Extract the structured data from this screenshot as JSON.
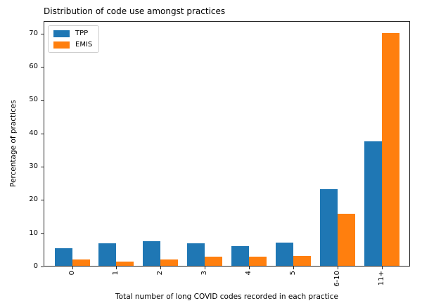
{
  "chart_data": {
    "type": "bar",
    "title": "Distribution of code use amongst practices",
    "xlabel": "Total number of long COVID codes recorded in each practice",
    "ylabel": "Percentage of practices",
    "categories": [
      "0",
      "1",
      "2",
      "3",
      "4",
      "5",
      "6-10",
      "11+"
    ],
    "series": [
      {
        "name": "TPP",
        "color": "#1f77b4",
        "values": [
          5.3,
          6.8,
          7.4,
          6.7,
          5.9,
          7.0,
          23.2,
          37.5
        ]
      },
      {
        "name": "EMIS",
        "color": "#ff7f0e",
        "values": [
          1.9,
          1.3,
          1.9,
          2.7,
          2.7,
          3.0,
          15.8,
          70.4
        ]
      }
    ],
    "ylim": [
      0,
      73.7
    ],
    "yticks": [
      0,
      10,
      20,
      30,
      40,
      50,
      60,
      70
    ],
    "legend": {
      "position": "upper left",
      "labels": [
        "TPP",
        "EMIS"
      ]
    },
    "grid": false,
    "x_tick_rotation": 90,
    "background": "#ffffff"
  }
}
